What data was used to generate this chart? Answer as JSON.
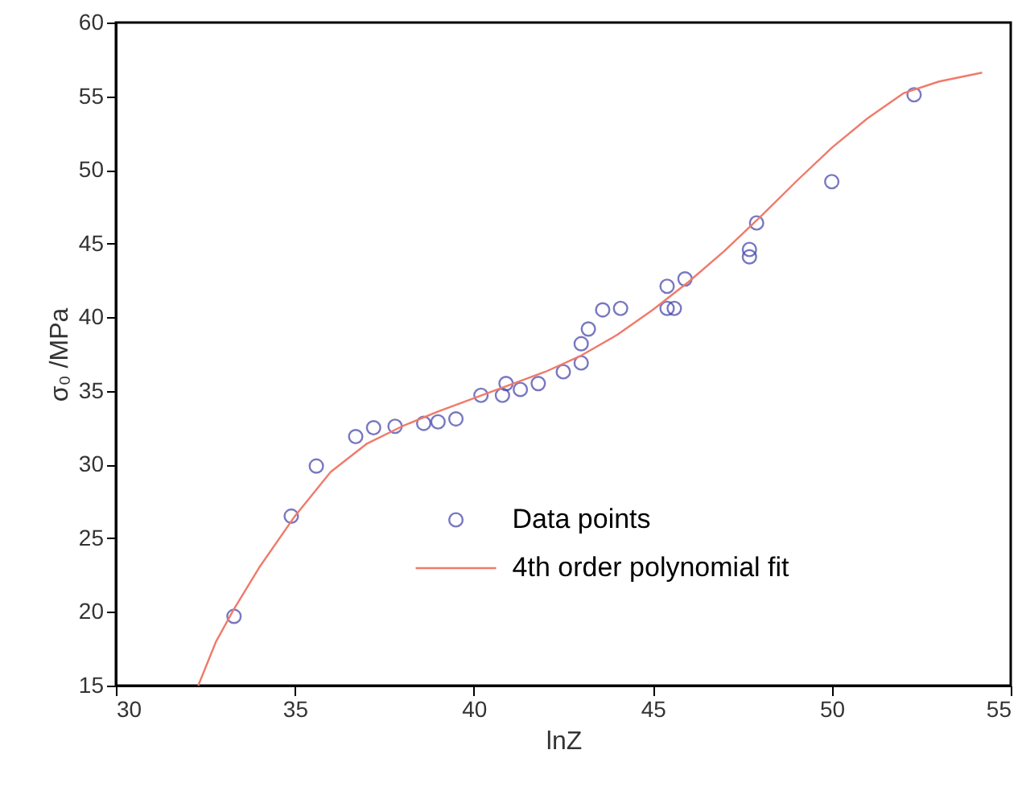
{
  "chart_data": {
    "type": "scatter",
    "xlabel": "lnZ",
    "ylabel": "σ₀ /MPa",
    "xlim": [
      30,
      55
    ],
    "ylim": [
      15,
      60
    ],
    "xticks": [
      30,
      35,
      40,
      45,
      50,
      55
    ],
    "yticks": [
      15,
      20,
      25,
      30,
      35,
      40,
      45,
      50,
      55,
      60
    ],
    "grid": false,
    "legend": "bottom",
    "series": [
      {
        "name": "Data points",
        "marker": "circle",
        "color": "#3f3fa8",
        "x": [
          33.3,
          34.9,
          35.6,
          36.7,
          37.2,
          37.8,
          38.6,
          39.0,
          39.5,
          40.2,
          40.8,
          40.9,
          41.3,
          41.8,
          42.5,
          43.0,
          43.0,
          43.2,
          43.6,
          44.1,
          45.4,
          45.6,
          45.4,
          45.9,
          47.7,
          47.7,
          47.9,
          50.0,
          52.3
        ],
        "values": [
          19.7,
          26.5,
          29.9,
          31.9,
          32.5,
          32.6,
          32.8,
          32.9,
          33.1,
          34.7,
          34.7,
          35.5,
          35.1,
          35.5,
          36.3,
          36.9,
          38.2,
          39.2,
          40.5,
          40.6,
          40.6,
          40.6,
          42.1,
          42.6,
          44.1,
          44.6,
          46.4,
          49.2,
          55.1
        ]
      },
      {
        "name": "4th order polynomial fit",
        "type": "line",
        "line_style": "solid",
        "color": "#f07a6a",
        "x": [
          32.3,
          32.8,
          33.3,
          34,
          35,
          36,
          37,
          38,
          39,
          40,
          41,
          42,
          43,
          44,
          45,
          46,
          47,
          48,
          49,
          50,
          51,
          52,
          53,
          54.2
        ],
        "values": [
          15,
          18,
          20.2,
          23,
          26.5,
          29.5,
          31.4,
          32.6,
          33.6,
          34.5,
          35.4,
          36.3,
          37.4,
          38.8,
          40.5,
          42.4,
          44.5,
          46.8,
          49.2,
          51.5,
          53.5,
          55.2,
          56.0,
          56.6
        ]
      }
    ]
  }
}
